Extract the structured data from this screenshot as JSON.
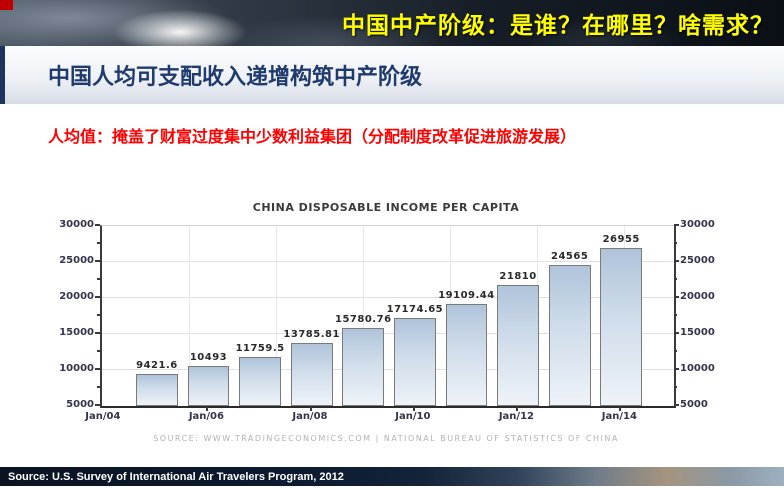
{
  "banner": {
    "title": "中国中产阶级：是谁？在哪里？啥需求？",
    "text_color": "#ffff00"
  },
  "slide": {
    "title": "中国人均可支配收入递增构筑中产阶级",
    "title_color": "#1f3a6e",
    "subtitle": "人均值：掩盖了财富过度集中少数利益集团（分配制度改革促进旅游发展）",
    "subtitle_color": "#ff0000",
    "footer_source": "Source: U.S. Survey of International Air Travelers Program, 2012"
  },
  "chart_data": {
    "type": "bar",
    "title": "CHINA DISPOSABLE INCOME PER CAPITA",
    "source_note": "SOURCE:  WWW.TRADINGECONOMICS.COM  |  NATIONAL BUREAU OF STATISTICS OF CHINA",
    "categories": [
      "Jan/04",
      "Jan/06",
      "Jan/08",
      "Jan/10",
      "Jan/12",
      "Jan/14"
    ],
    "values": [
      9421.6,
      10493,
      11759.5,
      13785.81,
      15780.76,
      17174.65,
      19109.44,
      21810,
      24565,
      26955
    ],
    "value_labels": [
      "9421.6",
      "10493",
      "11759.5",
      "13785.81",
      "15780.76",
      "17174.65",
      "19109.44",
      "21810",
      "24565",
      "26955"
    ],
    "y_ticks": [
      5000,
      10000,
      15000,
      20000,
      25000,
      30000
    ],
    "ylim": [
      5000,
      30000
    ],
    "xlabel": "",
    "ylabel": "",
    "grid": true,
    "legend": false,
    "bar_fill_top": "#afc3da",
    "bar_fill_bottom": "#eef3f8",
    "bar_border": "#7a7a7a"
  }
}
